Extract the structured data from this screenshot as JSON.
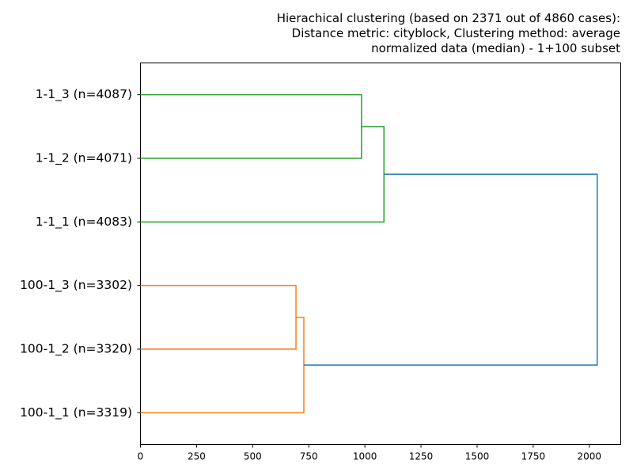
{
  "chart_data": {
    "type": "dendrogram",
    "orientation": "left",
    "title": [
      "Hierachical clustering (based on 2371 out of 4860 cases):",
      "Distance metric: cityblock, Clustering method: average",
      "normalized data (median) - 1+100 subset"
    ],
    "xlim": [
      0,
      2140
    ],
    "xticks": [
      0,
      250,
      500,
      750,
      1000,
      1250,
      1500,
      1750,
      2000
    ],
    "xtick_labels": [
      "0",
      "250",
      "500",
      "750",
      "1000",
      "1250",
      "1500",
      "1750",
      "2000"
    ],
    "leaves": [
      "1-1_3 (n=4087)",
      "1-1_2 (n=4071)",
      "1-1_1 (n=4083)",
      "100-1_3 (n=3302)",
      "100-1_2 (n=3320)",
      "100-1_1 (n=3319)"
    ],
    "colors": {
      "green": "#2ca02c",
      "orange": "#ff7f0e",
      "blue": "#1f77b4"
    },
    "links": [
      {
        "a": 0,
        "b": 1,
        "height": 985,
        "color": "green"
      },
      {
        "a": 6,
        "b": 2,
        "height": 1085,
        "color": "green"
      },
      {
        "a": 3,
        "b": 4,
        "height": 693,
        "color": "orange"
      },
      {
        "a": 8,
        "b": 5,
        "height": 728,
        "color": "orange"
      },
      {
        "a": 7,
        "b": 9,
        "height": 2035,
        "color": "blue"
      }
    ]
  }
}
